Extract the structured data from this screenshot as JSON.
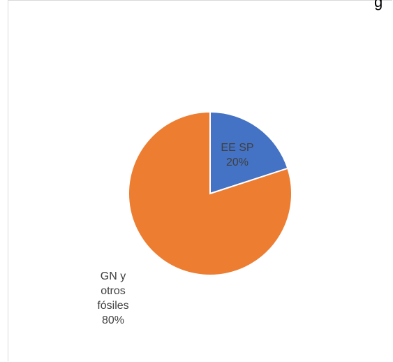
{
  "chart_data": {
    "type": "pie",
    "title_fragment": "g",
    "slices": [
      {
        "name": "EE SP",
        "value": 20,
        "label_lines": [
          "EE SP",
          "20%"
        ],
        "color": "#4472C4"
      },
      {
        "name": "GN y otros fósiles",
        "value": 80,
        "label_lines": [
          "GN y",
          "otros",
          "fósiles",
          "80%"
        ],
        "color": "#ED7D31"
      }
    ]
  }
}
